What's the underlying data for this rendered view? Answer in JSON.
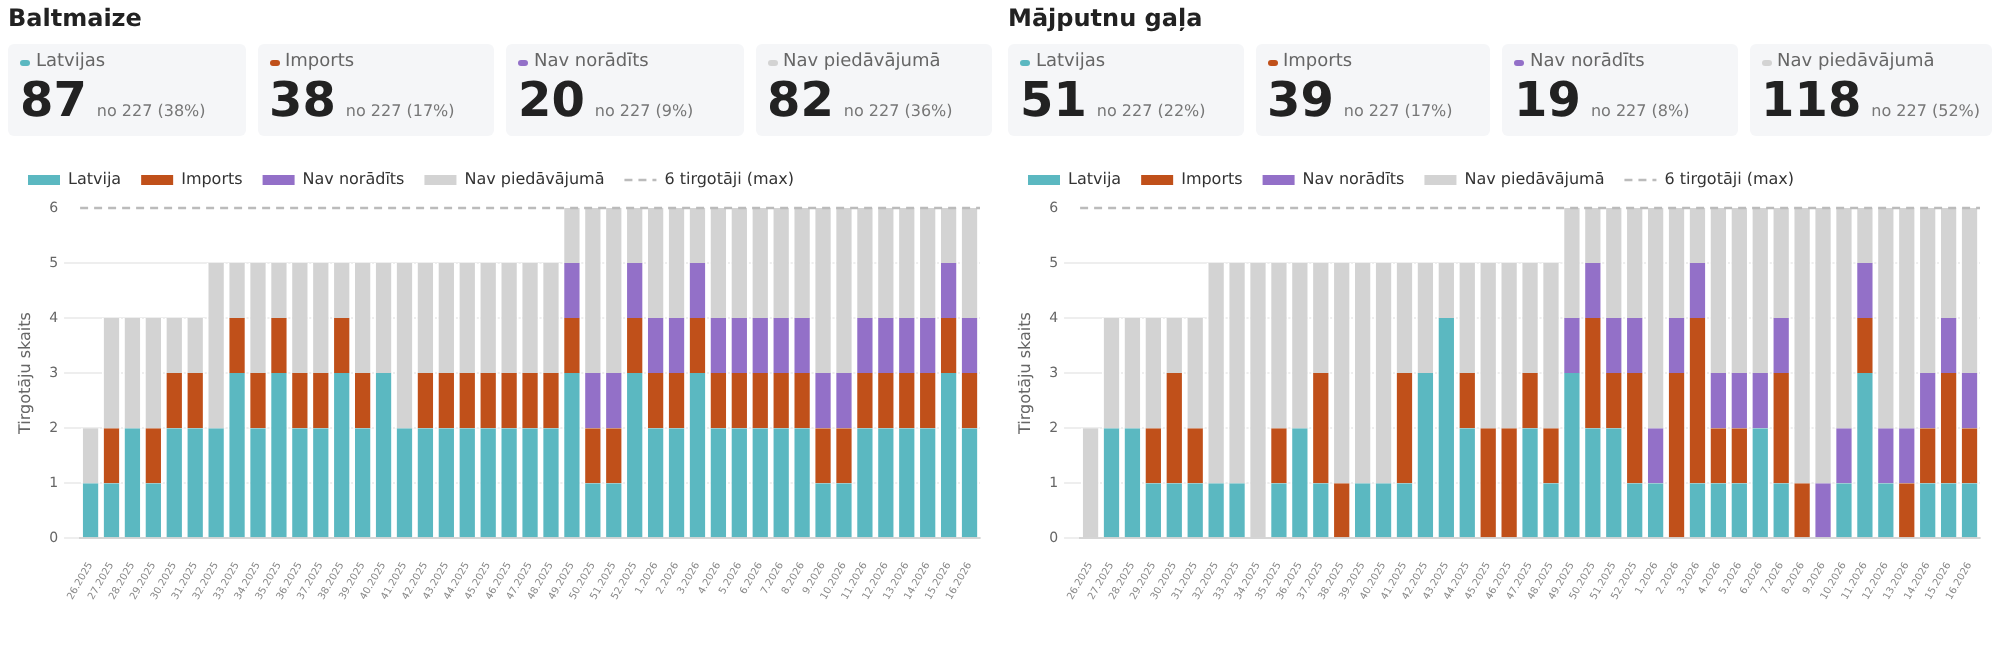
{
  "chart_data": [
    {
      "type": "bar",
      "stacked": true,
      "title": "Baltmaize",
      "annotations": [
        "Latvijas",
        "87",
        "no 227 (38%)",
        "Imports",
        "38",
        "no 227 (17%)",
        "Nav norādīts",
        "20",
        "no 227 (9%)",
        "Nav piedāvājumā",
        "82",
        "no 227 (36%)"
      ],
      "categories": [
        "26.2025",
        "27.2025",
        "28.2025",
        "29.2025",
        "30.2025",
        "31.2025",
        "32.2025",
        "33.2025",
        "34.2025",
        "35.2025",
        "36.2025",
        "37.2025",
        "38.2025",
        "39.2025",
        "40.2025",
        "41.2025",
        "42.2025",
        "43.2025",
        "44.2025",
        "45.2025",
        "46.2025",
        "47.2025",
        "48.2025",
        "49.2025",
        "50.2025",
        "51.2025",
        "52.2025",
        "1.2026",
        "2.2026",
        "3.2026",
        "4.2026",
        "5.2026",
        "6.2026",
        "7.2026",
        "8.2026",
        "9.2026",
        "10.2026",
        "11.2026",
        "12.2026",
        "13.2026",
        "14.2026",
        "15.2026",
        "16.2026"
      ],
      "series": [
        {
          "name": "Latvija",
          "color": "#5bb8c1",
          "values": [
            1,
            1,
            2,
            1,
            2,
            2,
            2,
            3,
            2,
            3,
            2,
            2,
            3,
            2,
            3,
            2,
            2,
            2,
            2,
            2,
            2,
            2,
            2,
            3,
            1,
            1,
            3,
            2,
            2,
            3,
            2,
            2,
            2,
            2,
            2,
            1,
            1,
            2,
            2,
            2,
            2,
            3,
            2
          ]
        },
        {
          "name": "Imports",
          "color": "#c0501a",
          "values": [
            0,
            1,
            0,
            1,
            1,
            1,
            0,
            1,
            1,
            1,
            1,
            1,
            1,
            1,
            0,
            0,
            1,
            1,
            1,
            1,
            1,
            1,
            1,
            1,
            1,
            1,
            1,
            1,
            1,
            1,
            1,
            1,
            1,
            1,
            1,
            1,
            1,
            1,
            1,
            1,
            1,
            1,
            1
          ]
        },
        {
          "name": "Nav norādīts",
          "color": "#9370c8",
          "values": [
            0,
            0,
            0,
            0,
            0,
            0,
            0,
            0,
            0,
            0,
            0,
            0,
            0,
            0,
            0,
            0,
            0,
            0,
            0,
            0,
            0,
            0,
            0,
            1,
            1,
            1,
            1,
            1,
            1,
            1,
            1,
            1,
            1,
            1,
            1,
            1,
            1,
            1,
            1,
            1,
            1,
            1,
            1
          ]
        },
        {
          "name": "Nav piedāvājumā",
          "color": "#d3d3d3",
          "values": [
            1,
            2,
            2,
            2,
            1,
            1,
            3,
            1,
            2,
            1,
            2,
            2,
            1,
            2,
            2,
            3,
            2,
            2,
            2,
            2,
            2,
            2,
            2,
            1,
            3,
            3,
            1,
            2,
            2,
            1,
            2,
            2,
            2,
            2,
            2,
            3,
            3,
            2,
            2,
            2,
            2,
            1,
            2
          ]
        }
      ],
      "ylabel": "Tirgotāju skaits",
      "ylim": [
        0,
        6
      ],
      "yticks": [
        0,
        1,
        2,
        3,
        4,
        5,
        6
      ],
      "grid": "y",
      "legend": "top",
      "ref_lines": [
        {
          "axis": "y",
          "value": 6,
          "label": "6 tirgotāji (max)",
          "color": "#bbbbbb",
          "line_style": "dashed"
        }
      ]
    },
    {
      "type": "bar",
      "stacked": true,
      "title": "Mājputnu gaļa",
      "annotations": [
        "Latvijas",
        "51",
        "no 227 (22%)",
        "Imports",
        "39",
        "no 227 (17%)",
        "Nav norādīts",
        "19",
        "no 227 (8%)",
        "Nav piedāvājumā",
        "118",
        "no 227 (52%)"
      ],
      "categories": [
        "26.2025",
        "27.2025",
        "28.2025",
        "29.2025",
        "30.2025",
        "31.2025",
        "32.2025",
        "33.2025",
        "34.2025",
        "35.2025",
        "36.2025",
        "37.2025",
        "38.2025",
        "39.2025",
        "40.2025",
        "41.2025",
        "42.2025",
        "43.2025",
        "44.2025",
        "45.2025",
        "46.2025",
        "47.2025",
        "48.2025",
        "49.2025",
        "50.2025",
        "51.2025",
        "52.2025",
        "1.2026",
        "2.2026",
        "3.2026",
        "4.2026",
        "5.2026",
        "6.2026",
        "7.2026",
        "8.2026",
        "9.2026",
        "10.2026",
        "11.2026",
        "12.2026",
        "13.2026",
        "14.2026",
        "15.2026",
        "16.2026"
      ],
      "series": [
        {
          "name": "Latvija",
          "color": "#5bb8c1",
          "values": [
            0,
            2,
            2,
            1,
            1,
            1,
            1,
            1,
            0,
            1,
            2,
            1,
            0,
            1,
            1,
            1,
            3,
            4,
            2,
            0,
            0,
            2,
            1,
            3,
            2,
            2,
            1,
            1,
            0,
            1,
            1,
            1,
            2,
            1,
            0,
            0,
            1,
            3,
            1,
            0,
            1,
            1,
            1
          ]
        },
        {
          "name": "Imports",
          "color": "#c0501a",
          "values": [
            0,
            0,
            0,
            1,
            2,
            1,
            0,
            0,
            0,
            1,
            0,
            2,
            1,
            0,
            0,
            2,
            0,
            0,
            1,
            2,
            2,
            1,
            1,
            0,
            2,
            1,
            2,
            0,
            3,
            3,
            1,
            1,
            0,
            2,
            1,
            0,
            0,
            1,
            0,
            1,
            1,
            2,
            1
          ]
        },
        {
          "name": "Nav norādīts",
          "color": "#9370c8",
          "values": [
            0,
            0,
            0,
            0,
            0,
            0,
            0,
            0,
            0,
            0,
            0,
            0,
            0,
            0,
            0,
            0,
            0,
            0,
            0,
            0,
            0,
            0,
            0,
            1,
            1,
            1,
            1,
            1,
            1,
            1,
            1,
            1,
            1,
            1,
            0,
            1,
            1,
            1,
            1,
            1,
            1,
            1,
            1
          ]
        },
        {
          "name": "Nav piedāvājumā",
          "color": "#d3d3d3",
          "values": [
            2,
            2,
            2,
            2,
            1,
            2,
            4,
            4,
            5,
            3,
            3,
            2,
            4,
            4,
            4,
            2,
            2,
            1,
            2,
            3,
            3,
            2,
            3,
            2,
            1,
            2,
            2,
            4,
            2,
            1,
            3,
            3,
            3,
            2,
            5,
            5,
            4,
            1,
            4,
            4,
            3,
            2,
            3
          ]
        }
      ],
      "ylabel": "Tirgotāju skaits",
      "ylim": [
        0,
        6
      ],
      "yticks": [
        0,
        1,
        2,
        3,
        4,
        5,
        6
      ],
      "grid": "y",
      "legend": "top",
      "ref_lines": [
        {
          "axis": "y",
          "value": 6,
          "label": "6 tirgotāji (max)",
          "color": "#bbbbbb",
          "line_style": "dashed"
        }
      ]
    }
  ]
}
